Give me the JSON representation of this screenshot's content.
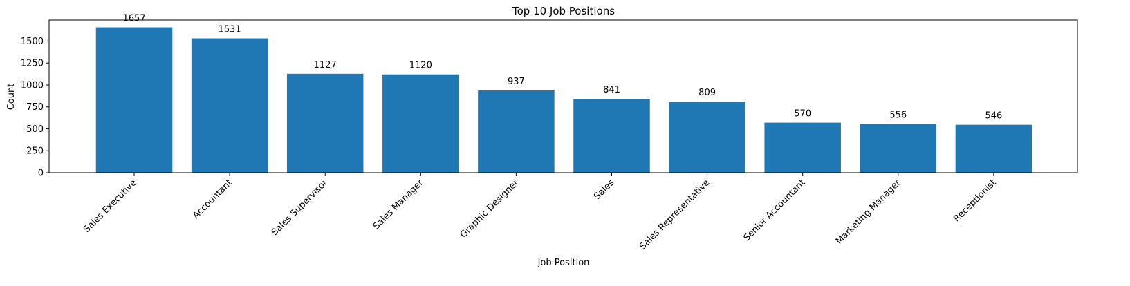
{
  "chart_data": {
    "type": "bar",
    "title": "Top 10 Job Positions",
    "xlabel": "Job Position",
    "ylabel": "Count",
    "categories": [
      "Sales Executive",
      "Accountant",
      "Sales Supervisor",
      "Sales Manager",
      "Graphic Designer",
      "Sales",
      "Sales Representative",
      "Senior Accountant",
      "Marketing Manager",
      "Receptionist"
    ],
    "values": [
      1657,
      1531,
      1127,
      1120,
      937,
      841,
      809,
      570,
      556,
      546
    ],
    "ylim": [
      0,
      1740
    ],
    "yticks": [
      0,
      250,
      500,
      750,
      1000,
      1250,
      1500
    ],
    "bar_color": "#1f77b4",
    "grid": false,
    "legend": "none"
  }
}
